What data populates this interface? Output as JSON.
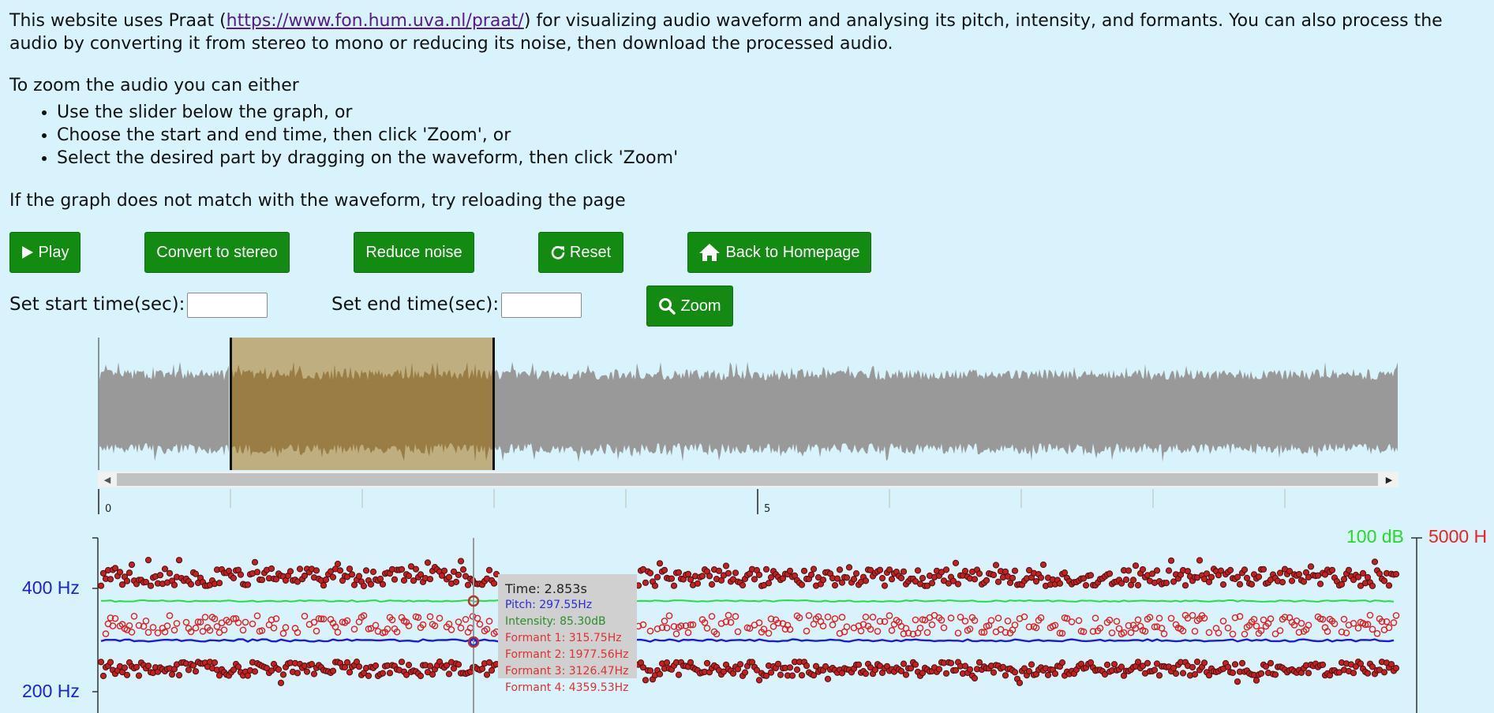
{
  "intro": {
    "before_link": "This website uses Praat (",
    "link_text": "https://www.fon.hum.uva.nl/praat/",
    "after_link": ") for visualizing audio waveform and analysing its pitch, intensity, and formants. You can also process the audio by converting it from stereo to mono or reducing its noise, then download the processed audio."
  },
  "zoom_help": {
    "heading": "To zoom the audio you can either",
    "items": [
      "Use the slider below the graph, or",
      "Choose the start and end time, then click 'Zoom', or",
      "Select the desired part by dragging on the waveform, then click 'Zoom'"
    ]
  },
  "reload_note": "If the graph does not match with the waveform, try reloading the page",
  "buttons": {
    "play": "Play",
    "convert": "Convert to stereo",
    "reduce_noise": "Reduce noise",
    "reset": "Reset",
    "homepage": "Back to Homepage",
    "zoom": "Zoom"
  },
  "time_inputs": {
    "start_label": "Set start time(sec):",
    "start_value": "",
    "end_label": "Set end time(sec):",
    "end_value": ""
  },
  "timeline": {
    "labels": [
      "0",
      "5"
    ]
  },
  "chart": {
    "left_axis": {
      "top_label": "400 Hz",
      "bottom_label": "200 Hz",
      "color": "#2020d8"
    },
    "right_axis": {
      "intensity_label": "100 dB",
      "intensity_color": "#22dd22",
      "formant_label": "5000 H",
      "formant_color": "#ee2222"
    }
  },
  "tooltip": {
    "time": "Time: 2.853s",
    "pitch": "Pitch: 297.55Hz",
    "intensity": "Intensity: 85.30dB",
    "formant1": "Formant 1: 315.75Hz",
    "formant2": "Formant 2: 1977.56Hz",
    "formant3": "Formant 3: 3126.47Hz",
    "formant4": "Formant 4: 4359.53Hz"
  },
  "colors": {
    "background": "#d8f3fb",
    "button": "#138a12",
    "waveform": "#999999",
    "selection": "#bfae80",
    "selection_wave": "#9a7d45",
    "pitch_line": "#1a1ad8",
    "intensity_line": "#22dd44",
    "formant": "#e02020"
  },
  "icons": {
    "play": "play-icon",
    "reset": "reload-icon",
    "homepage": "home-icon",
    "zoom": "search-icon"
  }
}
